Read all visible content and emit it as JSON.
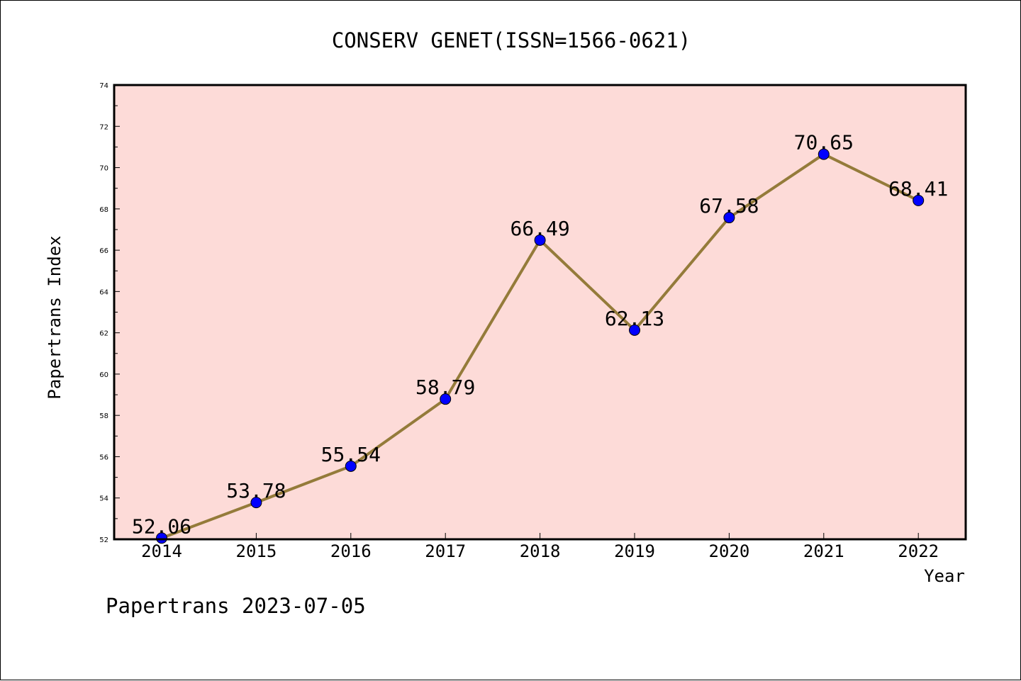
{
  "chart_data": {
    "type": "line",
    "title": "CONSERV GENET(ISSN=1566-0621)",
    "xlabel": "Year",
    "ylabel": "Papertrans Index",
    "footer": "Papertrans 2023-07-05",
    "categories": [
      "2014",
      "2015",
      "2016",
      "2017",
      "2018",
      "2019",
      "2020",
      "2021",
      "2022"
    ],
    "series": [
      {
        "values": [
          52.06,
          53.78,
          55.54,
          58.79,
          66.49,
          62.13,
          67.58,
          70.65,
          68.41
        ],
        "labels": [
          "52.06",
          "53.78",
          "55.54",
          "58.79",
          "66.49",
          "62.13",
          "67.58",
          "70.65",
          "68.41"
        ]
      }
    ],
    "ylim": [
      52,
      74
    ],
    "yticks": [
      "52",
      "54",
      "56",
      "58",
      "60",
      "62",
      "64",
      "66",
      "68",
      "70",
      "72",
      "74"
    ],
    "grid": false,
    "colors": {
      "plot_background": "#fddbd8",
      "line": "#947b3a",
      "marker": "#0000ff"
    }
  }
}
